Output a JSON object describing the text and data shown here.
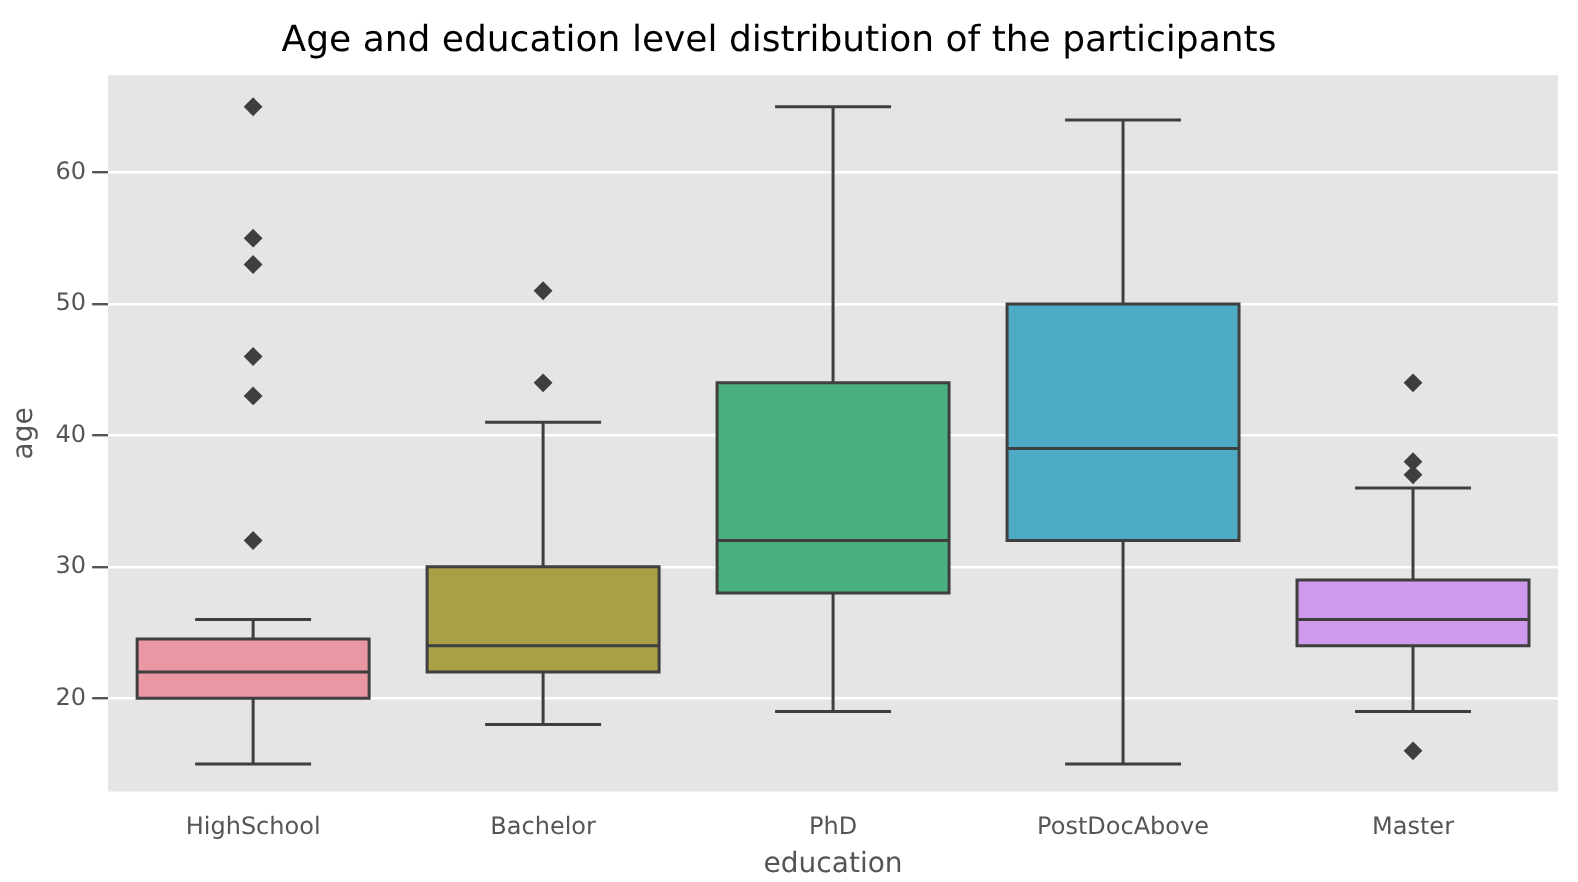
{
  "chart_data": {
    "type": "box",
    "title": "Age and education level distribution of the participants",
    "xlabel": "education",
    "ylabel": "age",
    "categories": [
      "HighSchool",
      "Bachelor",
      "PhD",
      "PostDocAbove",
      "Master"
    ],
    "colors": [
      "#ea96a3",
      "#ab9f46",
      "#4bb07f",
      "#4eabc6",
      "#cf9aeb"
    ],
    "boxes": [
      {
        "low": 15,
        "q1": 20,
        "median": 22,
        "q3": 24.5,
        "high": 26,
        "outliers": [
          32,
          43,
          46,
          53,
          55,
          65
        ]
      },
      {
        "low": 18,
        "q1": 22,
        "median": 24,
        "q3": 30,
        "high": 41,
        "outliers": [
          44,
          51
        ]
      },
      {
        "low": 19,
        "q1": 28,
        "median": 32,
        "q3": 44,
        "high": 65
      },
      {
        "low": 15,
        "q1": 32,
        "median": 39,
        "q3": 50,
        "high": 64
      },
      {
        "low": 19,
        "q1": 24,
        "median": 26,
        "q3": 29,
        "high": 36,
        "outliers": [
          16,
          37,
          38,
          44
        ]
      }
    ],
    "ylim": [
      12.9,
      67.4
    ],
    "yticks": [
      20,
      30,
      40,
      50,
      60
    ],
    "grid": "y",
    "marker": "diamond"
  }
}
